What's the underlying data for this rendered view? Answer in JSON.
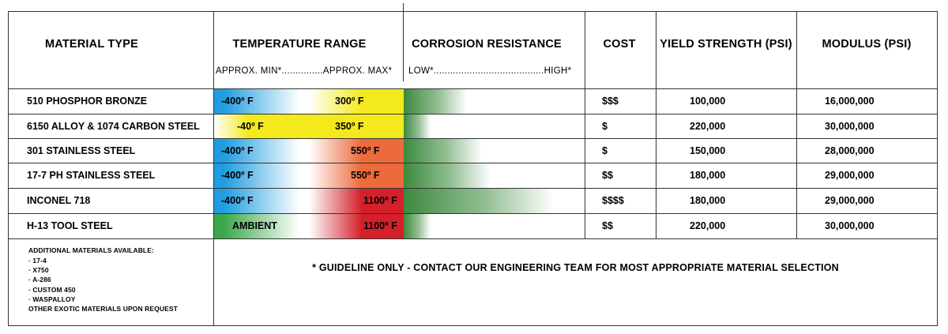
{
  "headers": {
    "material": "MATERIAL TYPE",
    "temperature": "TEMPERATURE RANGE",
    "temperature_sub": "APPROX. MIN*...............APPROX. MAX*",
    "corrosion": "CORROSION RESISTANCE",
    "corrosion_sub": "LOW*........................................HIGH*",
    "cost": "COST",
    "yield": "YIELD STRENGTH (PSI)",
    "modulus": "MODULUS (PSI)"
  },
  "rows": [
    {
      "material": "510 PHOSPHOR BRONZE",
      "temp_min": "-400º F",
      "temp_max": "300º F",
      "cost": "$$$",
      "yield": "100,000",
      "modulus": "16,000,000",
      "colors": {
        "min": "#1f9de0",
        "max": "#f4e91c"
      },
      "corrosion_level": 0.42
    },
    {
      "material": "6150 ALLOY & 1074 CARBON STEEL",
      "temp_min": "-40º F",
      "temp_max": "350º F",
      "cost": "$",
      "yield": "220,000",
      "modulus": "30,000,000",
      "colors": {
        "min": "#f4e91c",
        "max": "#f4e91c"
      },
      "corrosion_level": 0.18
    },
    {
      "material": "301 STAINLESS STEEL",
      "temp_min": "-400º F",
      "temp_max": "550º F",
      "cost": "$",
      "yield": "150,000",
      "modulus": "28,000,000",
      "colors": {
        "min": "#1f9de0",
        "max": "#ec6a3c"
      },
      "corrosion_level": 0.52
    },
    {
      "material": "17-7 PH STAINLESS STEEL",
      "temp_min": "-400º F",
      "temp_max": "550º F",
      "cost": "$$",
      "yield": "180,000",
      "modulus": "29,000,000",
      "colors": {
        "min": "#1f9de0",
        "max": "#ec6a3c"
      },
      "corrosion_level": 0.58
    },
    {
      "material": "INCONEL 718",
      "temp_min": "-400º F",
      "temp_max": "1100º F",
      "cost": "$$$$",
      "yield": "180,000",
      "modulus": "29,000,000",
      "colors": {
        "min": "#1f9de0",
        "max": "#d3202a"
      },
      "corrosion_level": 1.0
    },
    {
      "material": "H-13 TOOL STEEL",
      "temp_min": "AMBIENT",
      "temp_max": "1100º F",
      "cost": "$$",
      "yield": "220,000",
      "modulus": "30,000,000",
      "colors": {
        "min": "#3aa84a",
        "max": "#d3202a"
      },
      "corrosion_level": 0.18
    }
  ],
  "notes": {
    "title": "ADDITIONAL MATERIALS AVAILABLE:",
    "items": [
      "· 17-4",
      "· X750",
      "· A-286",
      "· CUSTOM 450",
      "· WASPALLOY",
      "OTHER EXOTIC MATERIALS UPON REQUEST"
    ]
  },
  "guideline": "* GUIDELINE ONLY - CONTACT OUR ENGINEERING TEAM FOR MOST APPROPRIATE MATERIAL SELECTION",
  "colors": {
    "line": "#333333",
    "corrosion": "#3c8a3e"
  }
}
